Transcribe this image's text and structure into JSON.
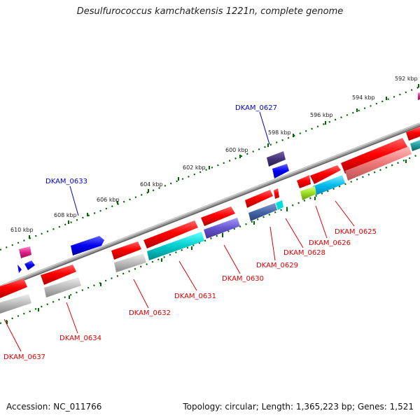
{
  "title": "Desulfurococcus kamchatkensis 1221n, complete genome",
  "footer": {
    "accession": "Accession: NC_011766",
    "summary": "Topology: circular; Length: 1,365,223 bp; Genes: 1,521"
  },
  "scale_labels": [
    "592 kbp",
    "594 kbp",
    "596 kbp",
    "598 kbp",
    "600 kbp",
    "602 kbp",
    "604 kbp",
    "606 kbp",
    "608 kbp",
    "610 kbp"
  ],
  "gene_labels": {
    "DKAM_0627": "DKAM_0627",
    "DKAM_0633": "DKAM_0633",
    "DKAM_0625": "DKAM_0625",
    "DKAM_0626": "DKAM_0626",
    "DKAM_0628": "DKAM_0628",
    "DKAM_0629": "DKAM_0629",
    "DKAM_0630": "DKAM_0630",
    "DKAM_0631": "DKAM_0631",
    "DKAM_0632": "DKAM_0632",
    "DKAM_0634": "DKAM_0634",
    "DKAM_0637": "DKAM_0637"
  },
  "colors": {
    "forward_label": "#0000cc",
    "reverse_label": "#dd0000",
    "scale_tick": "#006600",
    "backbone": "#777777"
  }
}
